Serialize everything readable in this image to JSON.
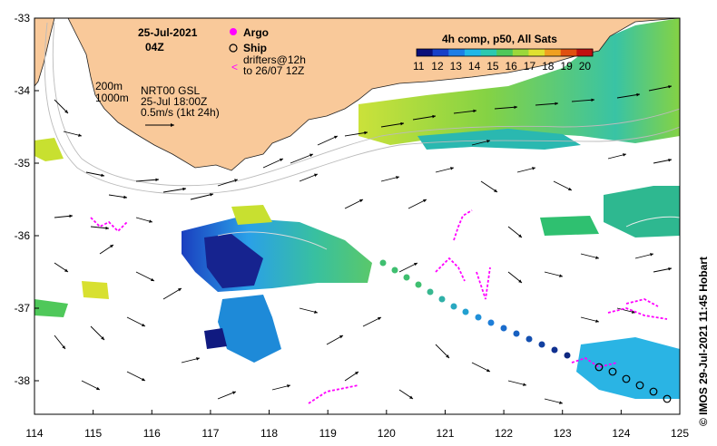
{
  "header": {
    "date": "25-Jul-2021",
    "time": "04Z"
  },
  "legend_points": {
    "argo": "Argo",
    "ship": "Ship",
    "drifters_line1": "drifters@12h",
    "drifters_line2": "to 26/07 12Z"
  },
  "info": {
    "depth1": "200m",
    "depth2": "1000m",
    "product": "NRT00 GSL",
    "product_time": "25-Jul 18:00Z",
    "scale": "0.5m/s (1kt 24h)"
  },
  "colorbar": {
    "title": "4h comp, p50, All Sats",
    "ticks": [
      "11",
      "12",
      "13",
      "14",
      "15",
      "16",
      "17",
      "18",
      "19",
      "20"
    ],
    "colors": [
      "#0b0f7a",
      "#1740c8",
      "#1e7ee6",
      "#22b7e8",
      "#2bc9b0",
      "#4fc85a",
      "#9bd83a",
      "#e0e030",
      "#f0a020",
      "#e05010",
      "#c01010"
    ]
  },
  "axes": {
    "x_ticks": [
      "114",
      "115",
      "116",
      "117",
      "118",
      "119",
      "120",
      "121",
      "122",
      "123",
      "124",
      "125"
    ],
    "y_ticks": [
      "-33",
      "-34",
      "-35",
      "-36",
      "-37",
      "-38"
    ]
  },
  "credit": "© IMOS 29-Jul-2021 11:45 Hobart",
  "colors": {
    "land": "#f9c99a",
    "argo": "#ff00ff",
    "drifter": "#ff00ff",
    "ship_track": "#1a5fb4"
  }
}
